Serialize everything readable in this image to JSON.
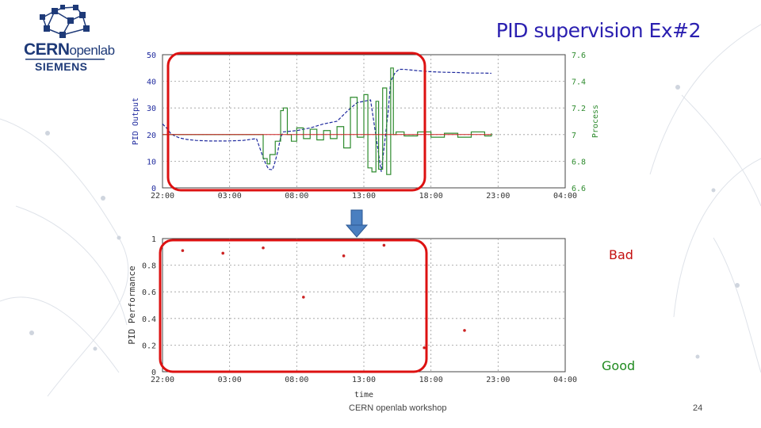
{
  "logo": {
    "cern": "CERN",
    "openlab": "openlab",
    "siemens": "SIEMENS"
  },
  "title": "PID supervision Ex#2",
  "labels": {
    "bad": "Bad",
    "good": "Good"
  },
  "footer": {
    "center": "CERN openlab workshop",
    "page": "24"
  },
  "colors": {
    "title": "#2a1fb0",
    "bad": "#c41010",
    "good": "#1f8a1f",
    "highlight": "#dd1111",
    "arrow": "#4a7fc0",
    "pid_output": "#1f2a9e",
    "process": "#2e8b2e",
    "setpoint": "#cc2222"
  },
  "chart_data": [
    {
      "type": "line",
      "title": "",
      "xlabel": "",
      "ylabel": "PID Output",
      "ylabel_right": "Process",
      "x_ticks": [
        "22:00",
        "03:00",
        "08:00",
        "13:00",
        "18:00",
        "23:00",
        "04:00"
      ],
      "y_ticks": [
        "0",
        "10",
        "20",
        "30",
        "40",
        "50"
      ],
      "y_right_ticks": [
        "6.6",
        "6.8",
        "7",
        "7.2",
        "7.4",
        "7.6"
      ],
      "ylim": [
        0,
        50
      ],
      "ylim_right": [
        6.6,
        7.6
      ],
      "grid": true,
      "series": [
        {
          "axis": "left",
          "style": "dashed",
          "x": [
            0,
            0.3,
            0.6,
            0.9,
            1.3,
            1.8,
            2.5,
            3.5,
            4.8,
            6.0,
            7.0,
            7.6,
            7.9,
            8.2,
            8.4,
            8.6,
            8.8,
            9.0,
            10.0,
            11.0,
            12.0,
            13.0,
            13.8,
            14.5,
            15.5,
            16.3,
            16.8,
            17.0,
            17.2,
            17.3,
            17.6,
            18.0,
            19.0,
            20.0,
            21.0,
            22.0,
            23.0,
            24.0,
            24.5
          ],
          "y": [
            24,
            22.5,
            20.5,
            19.5,
            18.7,
            18.2,
            17.8,
            17.6,
            17.6,
            17.8,
            18.5,
            10,
            7,
            6.8,
            10,
            14,
            19,
            21,
            21.5,
            22.5,
            24,
            25,
            29,
            32,
            33,
            6,
            28,
            40,
            42,
            43,
            44.5,
            44.5,
            44,
            43.6,
            43.4,
            43.3,
            43.1,
            43.1,
            43.0
          ]
        },
        {
          "axis": "right",
          "style": "solid",
          "x": [
            0,
            1.5,
            3.0,
            4.5,
            6.0,
            7.0,
            7.5,
            7.8,
            8.0,
            8.4,
            8.8,
            9.0,
            9.3,
            9.6,
            10.0,
            10.5,
            11.0,
            11.5,
            12.0,
            12.5,
            13.0,
            13.5,
            14.0,
            14.5,
            15.0,
            15.3,
            15.6,
            15.9,
            16.1,
            16.4,
            16.7,
            17.0,
            17.2,
            17.4,
            18.0,
            19.0,
            20.0,
            21.0,
            22.0,
            23.0,
            24.0,
            24.5
          ],
          "y": [
            7.0,
            7.0,
            7.0,
            7.0,
            7.0,
            7.0,
            6.82,
            6.78,
            6.85,
            6.95,
            7.18,
            7.2,
            7.0,
            6.95,
            7.05,
            6.97,
            7.04,
            6.96,
            7.03,
            6.97,
            7.06,
            6.9,
            7.28,
            6.98,
            7.3,
            6.75,
            6.72,
            7.25,
            6.74,
            7.35,
            6.7,
            7.5,
            7.0,
            7.02,
            6.99,
            7.02,
            6.98,
            7.01,
            6.98,
            7.02,
            6.99,
            7.01
          ]
        },
        {
          "axis": "right",
          "style": "solid",
          "x": [
            0,
            24.5
          ],
          "y": [
            7.0,
            7.0
          ]
        }
      ]
    },
    {
      "type": "scatter",
      "title": "",
      "xlabel": "time",
      "ylabel": "PID Performance",
      "x_ticks": [
        "22:00",
        "03:00",
        "08:00",
        "13:00",
        "18:00",
        "23:00",
        "04:00"
      ],
      "y_ticks": [
        "0",
        "0.2",
        "0.4",
        "0.6",
        "0.8",
        "1"
      ],
      "ylim": [
        0,
        1
      ],
      "grid": true,
      "series": [
        {
          "x": [
            1.5,
            4.5,
            7.5,
            10.5,
            13.5,
            16.5,
            19.5,
            22.5
          ],
          "y": [
            0.91,
            0.89,
            0.93,
            0.56,
            0.87,
            0.95,
            0.18,
            0.31
          ]
        }
      ]
    }
  ]
}
